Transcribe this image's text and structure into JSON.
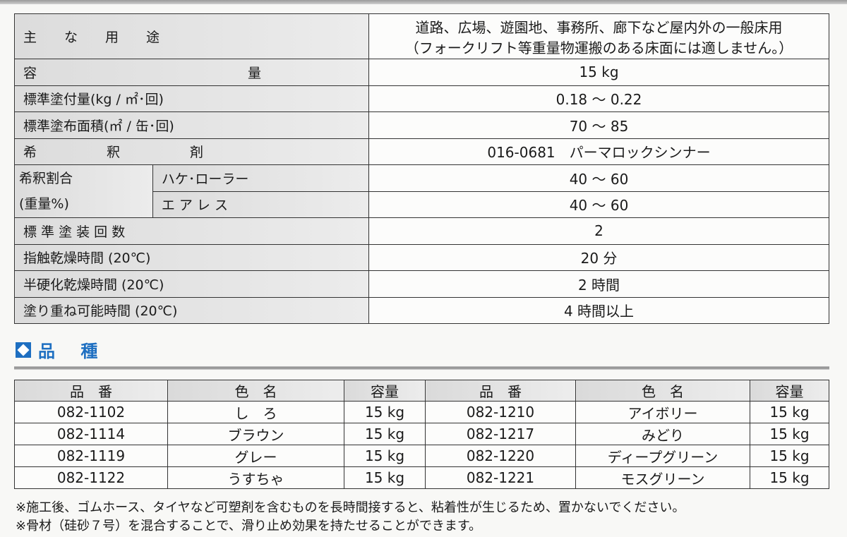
{
  "spec": {
    "rows": [
      {
        "label": "主　な　用　途",
        "value": "道路、広場、遊園地、事務所、廊下など屋内外の一般床用",
        "value2": "（フォークリフト等重量物運搬のある床面には適しません。）"
      },
      {
        "label": "容　量",
        "value": "15 kg"
      },
      {
        "label": "標準塗付量(kg / ㎡･回)",
        "value": "0.18 ～ 0.22"
      },
      {
        "label": "標準塗布面積(㎡ / 缶･回)",
        "value": "70 ～ 85"
      },
      {
        "label": "希　釈　剤",
        "value": "016-0681　パーマロックシンナー"
      },
      {
        "label": "ハケ･ローラー",
        "value": "40 ～ 60"
      },
      {
        "label": "エ ア レ ス",
        "value": "40 ～ 60"
      },
      {
        "label": "標 準 塗 装 回 数",
        "value": "2"
      },
      {
        "label": "指触乾燥時間 (20℃)",
        "value": "20 分"
      },
      {
        "label": "半硬化乾燥時間 (20℃)",
        "value": "2 時間"
      },
      {
        "label": "塗り重ね可能時間 (20℃)",
        "value": "4 時間以上"
      }
    ],
    "dilution_group": "希釈割合",
    "dilution_group2": "(重量%)"
  },
  "section": {
    "title": "品 種",
    "icon": "diamond-icon",
    "color": "#1e6fc1"
  },
  "kinds": {
    "headers": [
      "品　番",
      "色　名",
      "容量",
      "品　番",
      "色　名",
      "容量"
    ],
    "rows": [
      [
        "082-1102",
        "し　ろ",
        "15 kg",
        "082-1210",
        "アイボリー",
        "15 kg"
      ],
      [
        "082-1114",
        "ブラウン",
        "15 kg",
        "082-1217",
        "みどり",
        "15 kg"
      ],
      [
        "082-1119",
        "グレー",
        "15 kg",
        "082-1220",
        "ディープグリーン",
        "15 kg"
      ],
      [
        "082-1122",
        "うすちゃ",
        "15 kg",
        "082-1221",
        "モスグリーン",
        "15 kg"
      ]
    ]
  },
  "notes": [
    "※施工後、ゴムホース、タイヤなど可塑剤を含むものを長時間接すると、粘着性が生じるため、置かないでください。",
    "※骨材（硅砂７号）を混合することで、滑り止め効果を持たせることができます。"
  ]
}
